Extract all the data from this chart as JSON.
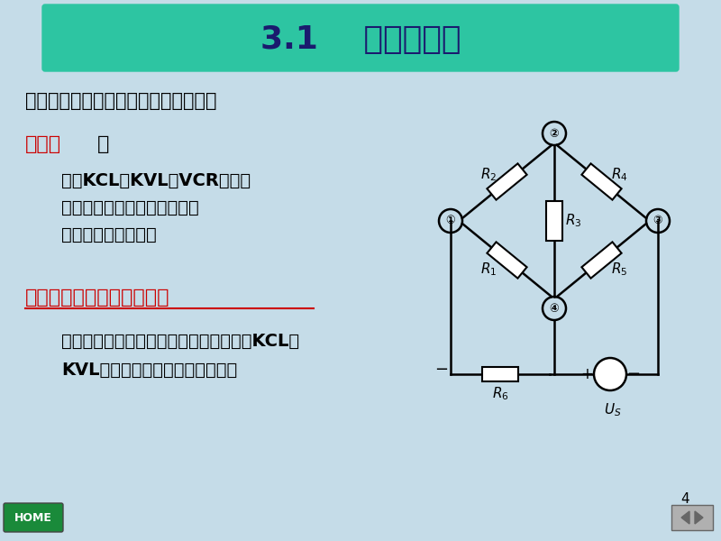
{
  "title": "3.1    支路分析法",
  "title_bg_color": "#2dc5a2",
  "title_text_color": "#1a1a6e",
  "slide_bg_color": "#c5dce8",
  "line1": "例图电路，求解各支路电流、支路电压",
  "line2_label": "支路法",
  "line2_colon": "：",
  "line4_label": "支路电流（支路电压）法：",
  "red_color": "#cc0000",
  "black_color": "#000000",
  "dark_blue": "#1a1a6e",
  "page_number": "4",
  "body_lines": [
    "依据KCL、KVL和VCR，列写",
    "出分析电路所需的方程组，求",
    "解分析电路的方法。"
  ],
  "bottom_lines": [
    "以支路电流（支路电压）为待求量，依据KCL、",
    "KVL列方程求解分析电路的方法。"
  ]
}
